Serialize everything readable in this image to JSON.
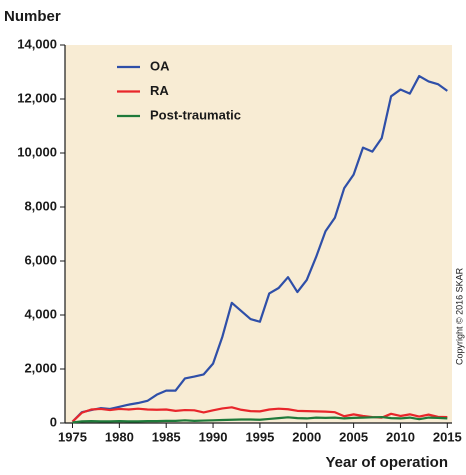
{
  "chart_data": {
    "type": "line",
    "y_label": "Number",
    "x_label": "Year of operation",
    "annotation": "Copyright © 2016 SKAR",
    "x": [
      1975,
      1976,
      1977,
      1978,
      1979,
      1980,
      1981,
      1982,
      1983,
      1984,
      1985,
      1986,
      1987,
      1988,
      1989,
      1990,
      1991,
      1992,
      1993,
      1994,
      1995,
      1996,
      1997,
      1998,
      1999,
      2000,
      2001,
      2002,
      2003,
      2004,
      2005,
      2006,
      2007,
      2008,
      2009,
      2010,
      2011,
      2012,
      2013,
      2014,
      2015
    ],
    "series": [
      {
        "name": "OA",
        "color": "#2f4fa8",
        "values": [
          50,
          400,
          480,
          550,
          520,
          600,
          680,
          740,
          820,
          1050,
          1200,
          1200,
          1650,
          1720,
          1800,
          2200,
          3200,
          4450,
          4150,
          3850,
          3750,
          4800,
          5000,
          5400,
          4850,
          5300,
          6150,
          7100,
          7600,
          8700,
          9200,
          10200,
          10050,
          10550,
          12100,
          12350,
          12200,
          12850,
          12650,
          12550,
          12300
        ]
      },
      {
        "name": "RA",
        "color": "#e8262b",
        "values": [
          50,
          380,
          500,
          520,
          480,
          520,
          500,
          530,
          500,
          490,
          500,
          450,
          480,
          470,
          390,
          470,
          540,
          580,
          490,
          440,
          430,
          500,
          530,
          510,
          450,
          440,
          430,
          420,
          400,
          250,
          320,
          260,
          220,
          200,
          340,
          260,
          320,
          240,
          310,
          230,
          220
        ]
      },
      {
        "name": "Post-traumatic",
        "color": "#1f7a3a",
        "values": [
          20,
          60,
          70,
          60,
          60,
          70,
          60,
          60,
          70,
          70,
          80,
          80,
          100,
          80,
          90,
          100,
          110,
          120,
          130,
          130,
          120,
          150,
          180,
          210,
          180,
          170,
          200,
          190,
          200,
          170,
          190,
          200,
          210,
          220,
          180,
          170,
          200,
          140,
          200,
          190,
          170
        ]
      }
    ],
    "xlim": [
      1974.2,
      2015.5
    ],
    "xticks": [
      1975,
      1980,
      1985,
      1990,
      1995,
      2000,
      2005,
      2010,
      2015
    ],
    "ylim": [
      0,
      14000
    ],
    "yticks": [
      0,
      {
        "value": 2000,
        "label": "2,000"
      },
      {
        "value": 4000,
        "label": "4,000"
      },
      {
        "value": 6000,
        "label": "6,000"
      },
      {
        "value": 8000,
        "label": "8,000"
      },
      {
        "value": 10000,
        "label": "10,000"
      },
      {
        "value": 12000,
        "label": "12,000"
      },
      {
        "value": 14000,
        "label": "14,000"
      }
    ],
    "legend": "upper left",
    "background": "#f8ecd4"
  }
}
